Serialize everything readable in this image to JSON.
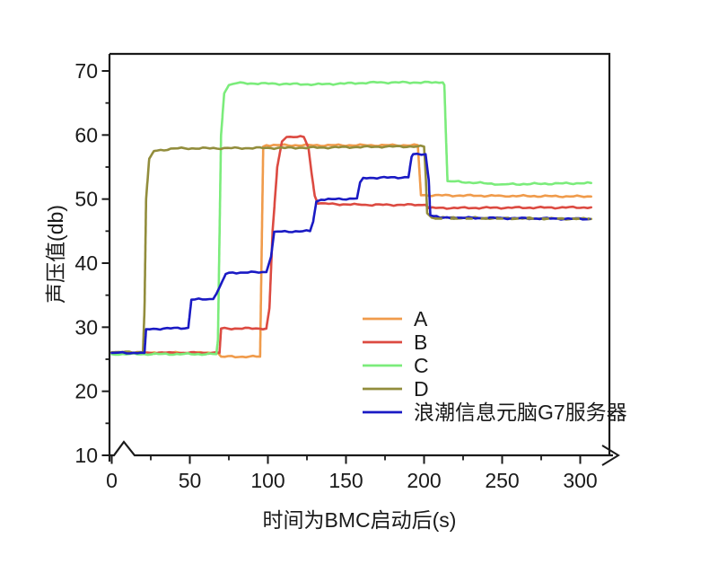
{
  "figure": {
    "background": "#ffffff",
    "axis_color": "#1a1a1a"
  },
  "chart_data": {
    "type": "line",
    "title": "",
    "xlabel": "时间为BMC启动后(s)",
    "ylabel": "声压值(db)",
    "xlim": [
      0,
      319
    ],
    "ylim": [
      10,
      72.6
    ],
    "x_ticks": [
      0,
      50,
      100,
      150,
      200,
      250,
      300
    ],
    "x_minor_ticks": [
      25,
      75,
      125,
      175,
      225,
      275
    ],
    "y_ticks": [
      10,
      20,
      30,
      40,
      50,
      60,
      70
    ],
    "y_minor_ticks": [
      15,
      25,
      35,
      45,
      55,
      65
    ],
    "grid": false,
    "axis_break_near_origin": true,
    "x_axis_arrow": true,
    "legend_position": "inside-lower-right",
    "series": [
      {
        "name": "A",
        "color": "#F09B4B",
        "points": [
          [
            0,
            26.0
          ],
          [
            68,
            26.0
          ],
          [
            70,
            25.4
          ],
          [
            95,
            25.4
          ],
          [
            97,
            58.2
          ],
          [
            99,
            58.4
          ],
          [
            196,
            58.4
          ],
          [
            198,
            50.6
          ],
          [
            250,
            50.5
          ],
          [
            307,
            50.4
          ]
        ]
      },
      {
        "name": "B",
        "color": "#DC4A41",
        "points": [
          [
            0,
            26.0
          ],
          [
            69,
            26.0
          ],
          [
            70,
            29.8
          ],
          [
            99,
            29.8
          ],
          [
            101,
            33
          ],
          [
            103,
            45
          ],
          [
            106,
            55
          ],
          [
            109,
            59.0
          ],
          [
            112,
            59.7
          ],
          [
            123,
            59.7
          ],
          [
            126,
            58
          ],
          [
            128,
            54
          ],
          [
            130,
            50.5
          ],
          [
            132,
            49.3
          ],
          [
            160,
            49.1
          ],
          [
            201,
            49.1
          ],
          [
            203,
            48.6
          ],
          [
            307,
            48.7
          ]
        ]
      },
      {
        "name": "C",
        "color": "#7BEC7B",
        "points": [
          [
            0,
            25.8
          ],
          [
            67,
            25.8
          ],
          [
            68,
            28
          ],
          [
            70,
            60
          ],
          [
            72,
            66.5
          ],
          [
            75,
            67.8
          ],
          [
            80,
            68.1
          ],
          [
            130,
            67.9
          ],
          [
            170,
            68.2
          ],
          [
            212,
            68.2
          ],
          [
            213,
            67.8
          ],
          [
            214,
            60
          ],
          [
            215,
            52.8
          ],
          [
            250,
            52.3
          ],
          [
            307,
            52.5
          ]
        ]
      },
      {
        "name": "D",
        "color": "#928D3C",
        "points": [
          [
            0,
            26.1
          ],
          [
            20,
            26.1
          ],
          [
            21,
            33
          ],
          [
            22,
            50
          ],
          [
            24,
            56.3
          ],
          [
            27,
            57.5
          ],
          [
            40,
            57.9
          ],
          [
            120,
            58.0
          ],
          [
            180,
            58.2
          ],
          [
            200,
            58.2
          ],
          [
            201,
            54
          ],
          [
            202,
            47.8
          ],
          [
            205,
            47.1
          ],
          [
            307,
            46.9
          ]
        ]
      },
      {
        "name": "浪潮信息元脑G7服务器",
        "color": "#1A1AC4",
        "points": [
          [
            0,
            26.0
          ],
          [
            21,
            26.0
          ],
          [
            22,
            29.7
          ],
          [
            49,
            29.9
          ],
          [
            51,
            34.3
          ],
          [
            65,
            34.4
          ],
          [
            67,
            35.2
          ],
          [
            73,
            38.3
          ],
          [
            75,
            38.5
          ],
          [
            99,
            38.6
          ],
          [
            102,
            41
          ],
          [
            104,
            44.9
          ],
          [
            127,
            45.0
          ],
          [
            129,
            46.5
          ],
          [
            131,
            49.6
          ],
          [
            134,
            49.9
          ],
          [
            157,
            50.1
          ],
          [
            159,
            52.6
          ],
          [
            161,
            53.3
          ],
          [
            190,
            53.4
          ],
          [
            192,
            56.6
          ],
          [
            193,
            57.0
          ],
          [
            201,
            57.0
          ],
          [
            203,
            53
          ],
          [
            204,
            47.5
          ],
          [
            210,
            47.1
          ],
          [
            306,
            46.9
          ]
        ]
      }
    ],
    "overlap_dash": {
      "series_index": 3,
      "from_t": 207,
      "to_t": 306,
      "level": 46.95,
      "dash": [
        8,
        9
      ]
    }
  }
}
